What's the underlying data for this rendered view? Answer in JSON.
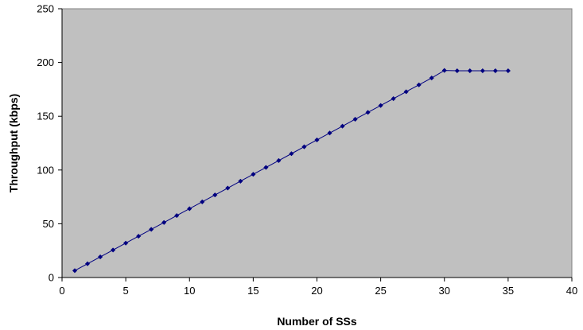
{
  "chart_data": {
    "type": "line",
    "title": "",
    "xlabel": "Number of SSs",
    "ylabel": "Throughput (kbps)",
    "xlim": [
      0,
      40
    ],
    "ylim": [
      0,
      250
    ],
    "x_ticks": [
      "0",
      "5",
      "10",
      "15",
      "20",
      "25",
      "30",
      "35",
      "40"
    ],
    "y_ticks": [
      "0",
      "50",
      "100",
      "150",
      "200",
      "250"
    ],
    "grid": false,
    "legend": "none",
    "plot_background": "#c0c0c0",
    "series": [
      {
        "color": "#000080",
        "marker": "diamond",
        "x": [
          1,
          2,
          3,
          4,
          5,
          6,
          7,
          8,
          9,
          10,
          11,
          12,
          13,
          14,
          15,
          16,
          17,
          18,
          19,
          20,
          21,
          22,
          23,
          24,
          25,
          26,
          27,
          28,
          29,
          30,
          31,
          32,
          33,
          34,
          35
        ],
        "y": [
          6.4,
          12.8,
          19.2,
          25.6,
          32,
          38.4,
          44.8,
          51.2,
          57.6,
          64,
          70.4,
          76.8,
          83.2,
          89.6,
          96,
          102.4,
          108.8,
          115.2,
          121.6,
          128,
          134.4,
          140.8,
          147.2,
          153.6,
          160,
          166.4,
          172.8,
          179.2,
          185.6,
          192.6,
          192.3,
          192.3,
          192.3,
          192.3,
          192.3
        ]
      }
    ]
  }
}
